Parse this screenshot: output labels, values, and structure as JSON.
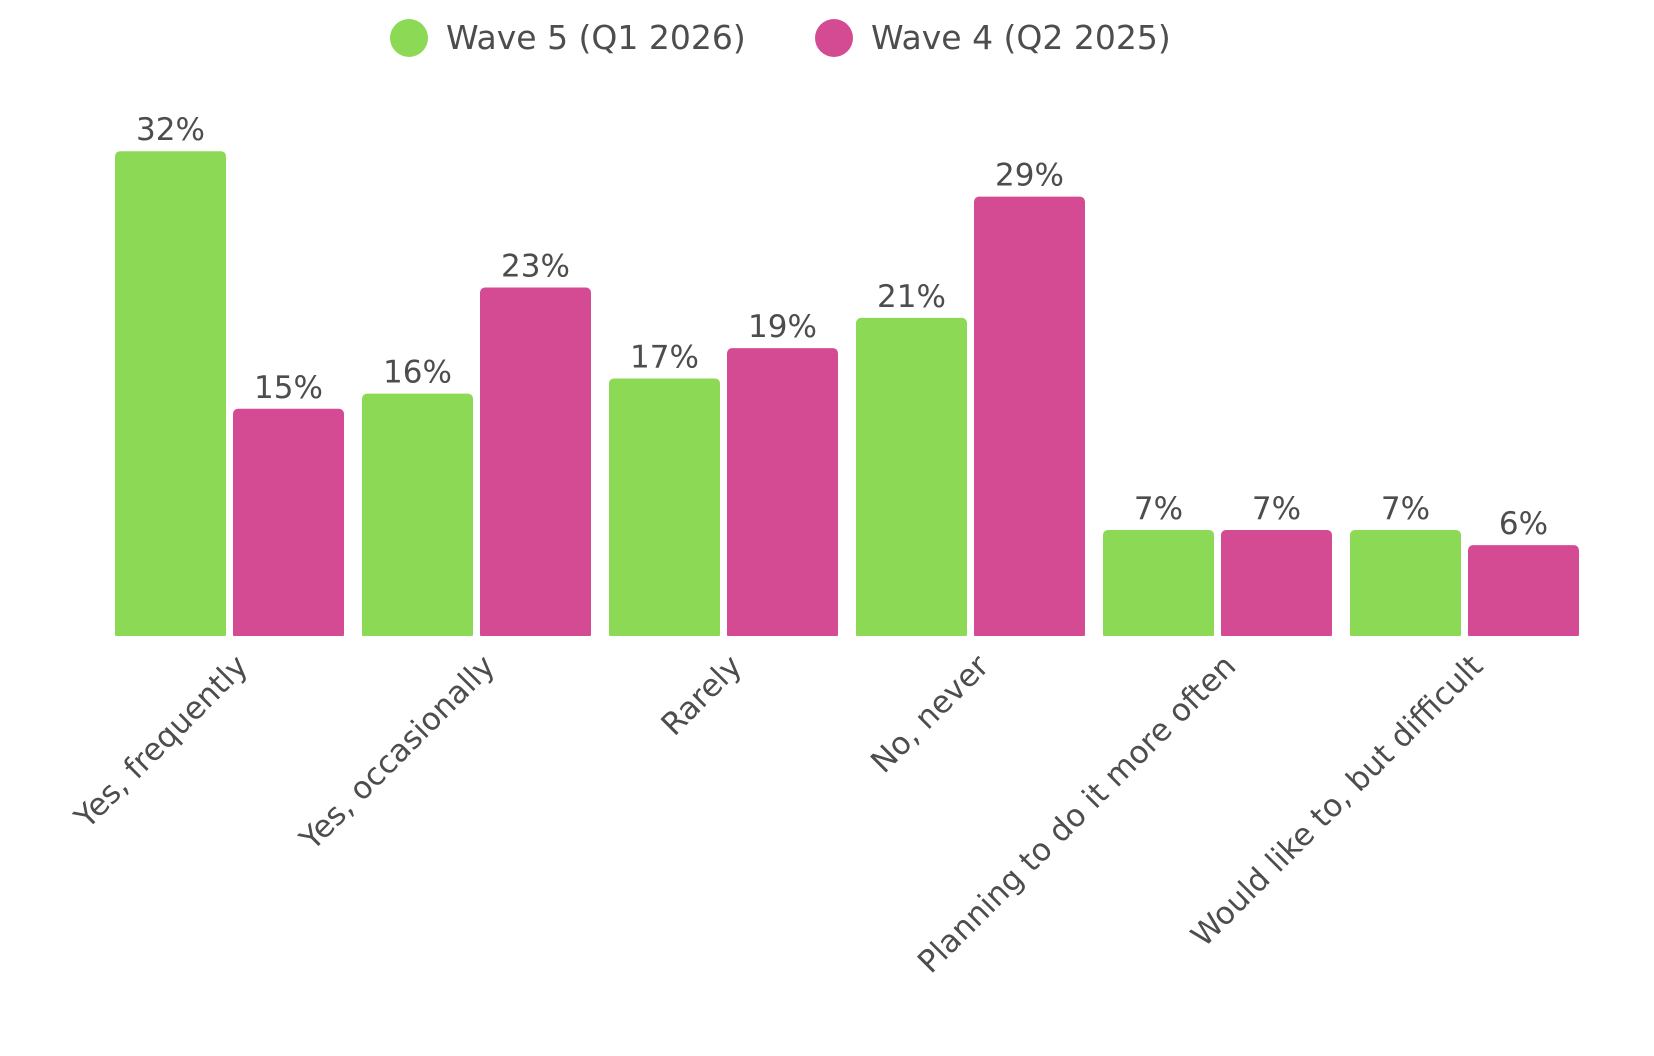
{
  "chart_data": {
    "type": "bar",
    "title": "",
    "xlabel": "",
    "ylabel": "",
    "ylim": [
      0,
      32
    ],
    "grid": false,
    "legend_position": "top-center",
    "value_suffix": "%",
    "categories": [
      "Yes, frequently",
      "Yes, occasionally",
      "Rarely",
      "No, never",
      "Planning to do it more often",
      "Would like to, but difficult"
    ],
    "series": [
      {
        "name": "Wave 5 (Q1 2026)",
        "color": "#8cd955",
        "values": [
          32,
          16,
          17,
          21,
          7,
          7
        ]
      },
      {
        "name": "Wave 4 (Q2 2025)",
        "color": "#d44b94",
        "values": [
          15,
          23,
          19,
          29,
          7,
          6
        ]
      }
    ]
  }
}
